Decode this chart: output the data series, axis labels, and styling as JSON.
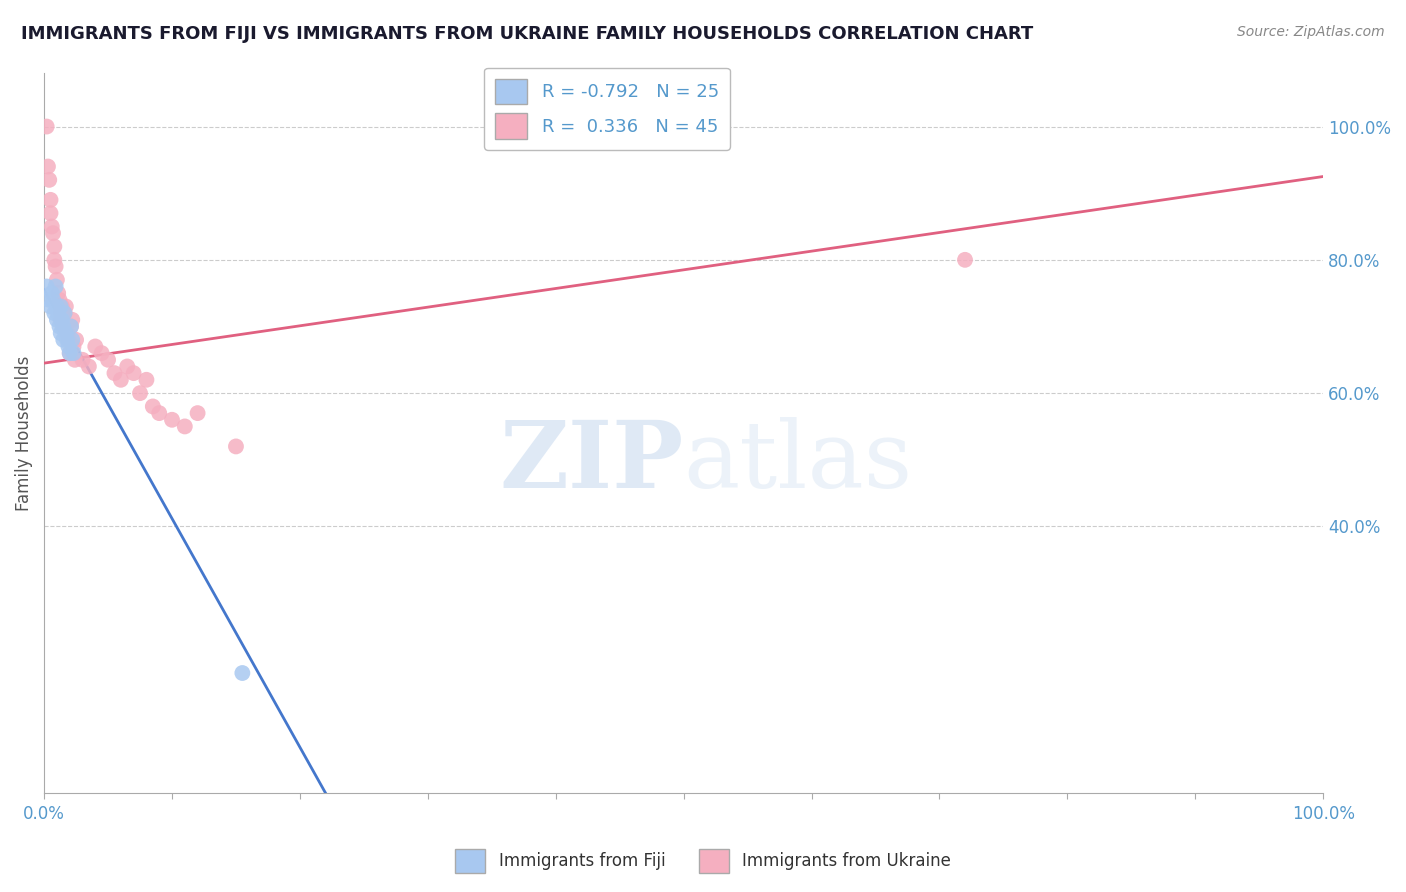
{
  "title": "IMMIGRANTS FROM FIJI VS IMMIGRANTS FROM UKRAINE FAMILY HOUSEHOLDS CORRELATION CHART",
  "source": "Source: ZipAtlas.com",
  "ylabel": "Family Households",
  "fiji_label": "Immigrants from Fiji",
  "ukraine_label": "Immigrants from Ukraine",
  "fiji_R": -0.792,
  "fiji_N": 25,
  "ukraine_R": 0.336,
  "ukraine_N": 45,
  "fiji_color": "#a8c8f0",
  "ukraine_color": "#f5afc0",
  "fiji_line_color": "#4477cc",
  "ukraine_line_color": "#e06080",
  "background_color": "#ffffff",
  "grid_color": "#cccccc",
  "axis_label_color": "#5599cc",
  "title_color": "#1a1a2e",
  "watermark_zip": "ZIP",
  "watermark_atlas": "atlas",
  "xlim": [
    0.0,
    1.0
  ],
  "ylim": [
    0.0,
    1.08
  ],
  "fiji_scatter_x": [
    0.002,
    0.004,
    0.005,
    0.006,
    0.007,
    0.008,
    0.009,
    0.01,
    0.01,
    0.011,
    0.012,
    0.013,
    0.013,
    0.014,
    0.015,
    0.015,
    0.016,
    0.017,
    0.018,
    0.019,
    0.02,
    0.021,
    0.022,
    0.023,
    0.155
  ],
  "fiji_scatter_y": [
    0.76,
    0.74,
    0.73,
    0.75,
    0.74,
    0.72,
    0.76,
    0.73,
    0.71,
    0.72,
    0.7,
    0.73,
    0.69,
    0.71,
    0.7,
    0.68,
    0.72,
    0.69,
    0.68,
    0.67,
    0.66,
    0.7,
    0.68,
    0.66,
    0.18
  ],
  "ukraine_scatter_x": [
    0.002,
    0.003,
    0.004,
    0.005,
    0.005,
    0.006,
    0.007,
    0.008,
    0.008,
    0.009,
    0.01,
    0.011,
    0.012,
    0.013,
    0.013,
    0.014,
    0.015,
    0.016,
    0.017,
    0.018,
    0.019,
    0.02,
    0.021,
    0.022,
    0.023,
    0.024,
    0.025,
    0.03,
    0.035,
    0.04,
    0.045,
    0.05,
    0.055,
    0.06,
    0.065,
    0.07,
    0.075,
    0.08,
    0.085,
    0.09,
    0.1,
    0.11,
    0.12,
    0.15,
    0.72
  ],
  "ukraine_scatter_y": [
    1.0,
    0.94,
    0.92,
    0.89,
    0.87,
    0.85,
    0.84,
    0.82,
    0.8,
    0.79,
    0.77,
    0.75,
    0.74,
    0.72,
    0.71,
    0.73,
    0.7,
    0.72,
    0.73,
    0.69,
    0.68,
    0.66,
    0.7,
    0.71,
    0.67,
    0.65,
    0.68,
    0.65,
    0.64,
    0.67,
    0.66,
    0.65,
    0.63,
    0.62,
    0.64,
    0.63,
    0.6,
    0.62,
    0.58,
    0.57,
    0.56,
    0.55,
    0.57,
    0.52,
    0.8
  ],
  "fiji_line_x0": 0.0,
  "fiji_line_y0": 0.755,
  "fiji_line_x1": 0.22,
  "fiji_line_y1": 0.0,
  "ukraine_line_x0": 0.0,
  "ukraine_line_y0": 0.645,
  "ukraine_line_x1": 1.0,
  "ukraine_line_y1": 0.925
}
